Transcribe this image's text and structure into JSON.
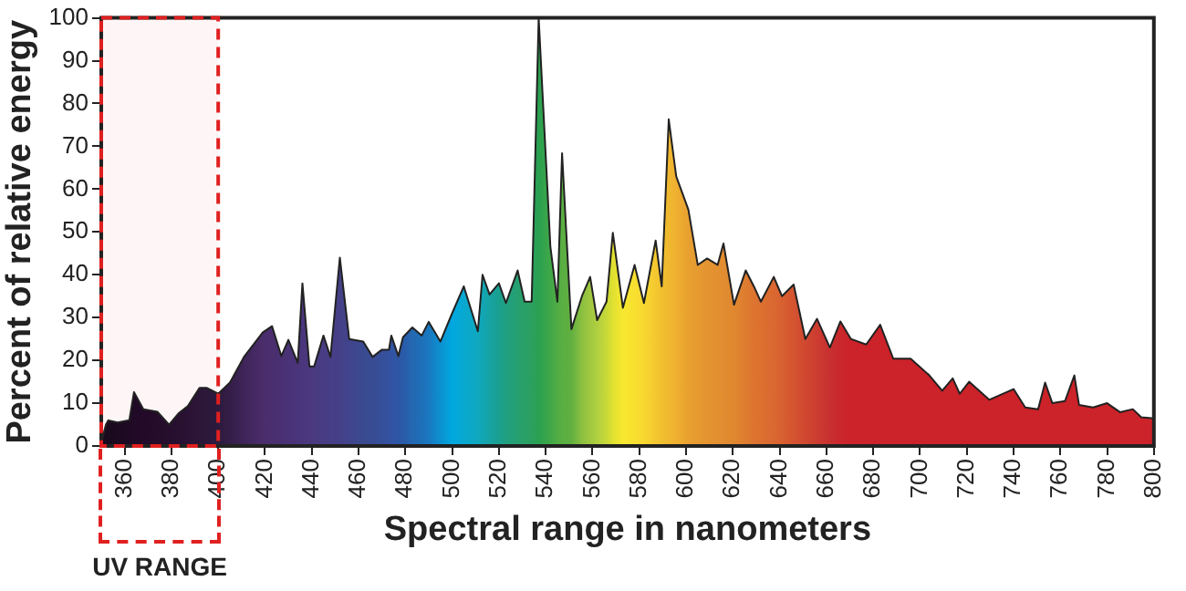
{
  "chart_data": {
    "type": "area",
    "xlabel": "Spectral range in nanometers",
    "ylabel": "Percent of relative energy",
    "x": [
      350,
      352,
      353,
      357,
      362,
      364,
      368,
      374,
      379,
      383,
      387,
      392,
      395,
      400,
      405,
      411,
      419,
      423,
      427,
      430,
      434,
      436,
      439,
      441,
      445,
      448,
      452,
      456,
      462,
      466,
      470,
      473,
      474,
      477,
      479,
      483,
      487,
      490,
      495,
      500,
      505,
      511,
      513,
      516,
      520,
      523,
      528,
      531,
      534,
      537,
      542,
      545,
      547,
      551,
      555.5,
      559,
      562,
      566,
      568.7,
      573,
      578,
      582,
      587,
      589.6,
      592.6,
      595.8,
      601,
      605,
      609,
      613.5,
      616,
      620.5,
      625.5,
      629,
      632,
      637.5,
      641,
      646,
      651,
      656,
      661.5,
      666,
      670.5,
      677,
      683,
      688.6,
      696,
      704,
      709.5,
      714,
      717,
      721,
      729.6,
      740,
      745,
      750.5,
      753.5,
      756.6,
      762,
      766,
      768,
      774,
      780,
      785.5,
      791,
      794.6,
      799,
      800
    ],
    "series": [
      {
        "color": "#222222",
        "values": [
          0.7,
          5,
          6,
          5.5,
          6,
          12.6,
          8.6,
          8,
          5,
          7.6,
          9.3,
          13.6,
          13.6,
          12.2,
          14.8,
          20.8,
          26.5,
          28,
          21,
          24.8,
          19.4,
          38,
          18.6,
          18.6,
          25.8,
          20.8,
          44,
          25,
          24.4,
          20.8,
          22.5,
          22.5,
          25.8,
          21,
          25.4,
          27.7,
          25.8,
          29,
          24.4,
          31,
          37.3,
          26.8,
          40,
          35.4,
          38,
          33.4,
          41,
          33.7,
          33.7,
          100,
          46.6,
          33.7,
          68.4,
          27.3,
          35,
          39.5,
          29.4,
          33.7,
          49.8,
          32.3,
          42.3,
          33.4,
          48,
          37.3,
          76.3,
          63,
          55.2,
          42.3,
          43.8,
          42.3,
          47.3,
          33,
          41,
          37.3,
          33.7,
          39.5,
          35,
          37.7,
          25,
          29.7,
          23,
          29.1,
          25,
          23.7,
          28.3,
          20.4,
          20.4,
          16.5,
          12.9,
          15.8,
          12.2,
          15,
          10.8,
          13.3,
          9,
          8.6,
          14.8,
          10,
          10.5,
          16.5,
          9.6,
          9,
          10,
          7.9,
          8.6,
          6.7,
          6.5,
          6.5
        ],
        "colors": [
          "#1a0a1e",
          "#1a0a1e",
          "#1a0a1e",
          "#1c0a20",
          "#1e0a24",
          "#200a26",
          "#220a28",
          "#240c2a",
          "#260e2e",
          "#281030",
          "#2a1234",
          "#2c1638",
          "#2c183a",
          "#2d1a3e",
          "#341e48",
          "#3e2458",
          "#4a2d6b",
          "#4a2e6e",
          "#4a3072",
          "#4a3278",
          "#4a347a",
          "#4a367c",
          "#4a387e",
          "#4a3a80",
          "#483c84",
          "#473e86",
          "#454088",
          "#41448c",
          "#3a4a90",
          "#384c94",
          "#364f9a",
          "#3452a0",
          "#3354a2",
          "#2e57a5",
          "#2a5aa8",
          "#2468b2",
          "#1e70b8",
          "#1a78c0",
          "#0c90d0",
          "#00a8e0",
          "#08a8d0",
          "#10a8c0",
          "#12a6b4",
          "#16a3a4",
          "#1aa090",
          "#20a080",
          "#26a070",
          "#28a066",
          "#2aa060",
          "#2aa050",
          "#40a848",
          "#50ac44",
          "#5aae42",
          "#60b040",
          "#8cc040",
          "#a0c840",
          "#b0d040",
          "#c8d838",
          "#e0e030",
          "#f8e830",
          "#f8e030",
          "#f8d830",
          "#f4c830",
          "#f0c030",
          "#f0b830",
          "#f0b030",
          "#e8a030",
          "#e69a30",
          "#e49430",
          "#e29030",
          "#e18c30",
          "#e08830",
          "#de7c30",
          "#dd7430",
          "#dc7030",
          "#da6830",
          "#d86030",
          "#d45430",
          "#d04830",
          "#cc3c30",
          "#c83030",
          "#ca282c",
          "#cc2229",
          "#cc2229",
          "#cc2229",
          "#cc2229",
          "#cc2229",
          "#cc2229",
          "#cc2229",
          "#cc2229",
          "#cc2229",
          "#cc2229",
          "#cc2229",
          "#cc2229",
          "#cc2229",
          "#cc2229",
          "#cc2229",
          "#cc2229",
          "#cc2229",
          "#cc2229",
          "#cc2229",
          "#cc2229",
          "#cc2229",
          "#cc2229",
          "#cc2229",
          "#cc2229",
          "#cc2229",
          "#cc2229"
        ]
      }
    ],
    "xlim": [
      350,
      800
    ],
    "xticks": [
      360,
      380,
      400,
      420,
      440,
      460,
      480,
      500,
      520,
      540,
      560,
      580,
      600,
      620,
      640,
      660,
      680,
      700,
      720,
      740,
      760,
      780,
      800
    ],
    "ylim": [
      0,
      100
    ],
    "yticks": [
      0,
      10,
      20,
      30,
      40,
      50,
      60,
      70,
      80,
      90,
      100
    ],
    "grid": false,
    "bands": [
      {
        "axis": "x",
        "from": 350,
        "to": 400,
        "label": "UV RANGE",
        "color": "#e02020"
      }
    ]
  }
}
